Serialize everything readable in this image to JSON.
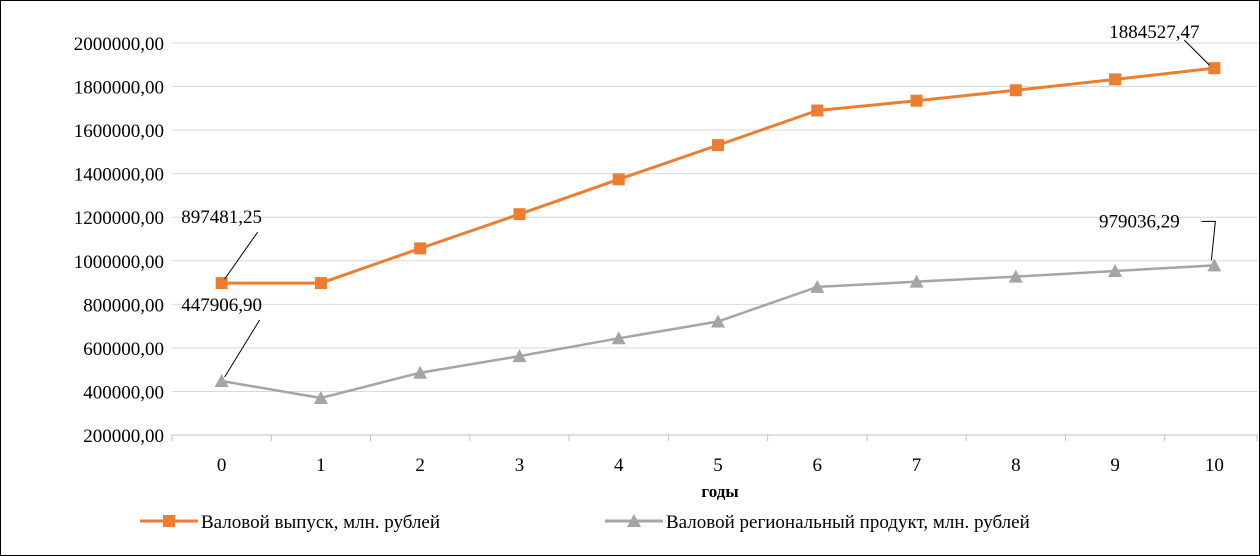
{
  "chart_data": {
    "type": "line",
    "title": "",
    "xlabel": "годы",
    "ylabel": "",
    "x": [
      0,
      1,
      2,
      3,
      4,
      5,
      6,
      7,
      8,
      9,
      10
    ],
    "ylim": [
      200000,
      2000000
    ],
    "yticks": [
      200000,
      400000,
      600000,
      800000,
      1000000,
      1200000,
      1400000,
      1600000,
      1800000,
      2000000
    ],
    "ytick_labels": [
      "200000,00",
      "400000,00",
      "600000,00",
      "800000,00",
      "1000000,00",
      "1200000,00",
      "1400000,00",
      "1600000,00",
      "1800000,00",
      "2000000,00"
    ],
    "grid": "horizontal",
    "legend_position": "bottom",
    "series": [
      {
        "name": "Валовой выпуск, млн. рублей",
        "color": "#ED7D31",
        "marker": "square",
        "values": [
          897481.25,
          897600,
          1057000,
          1214000,
          1374000,
          1531000,
          1690000,
          1735000,
          1783000,
          1833000,
          1884527.47
        ]
      },
      {
        "name": "Валовой региональный продукт, млн. рублей",
        "color": "#A5A5A5",
        "marker": "triangle",
        "values": [
          447906.9,
          370000,
          486000,
          562000,
          644000,
          721000,
          880000,
          904000,
          927000,
          953000,
          979036.29
        ]
      }
    ],
    "annotations": [
      {
        "series": 0,
        "index": 0,
        "text": "897481,25"
      },
      {
        "series": 0,
        "index": 10,
        "text": "1884527,47"
      },
      {
        "series": 1,
        "index": 0,
        "text": "447906,90"
      },
      {
        "series": 1,
        "index": 10,
        "text": "979036,29"
      }
    ]
  }
}
